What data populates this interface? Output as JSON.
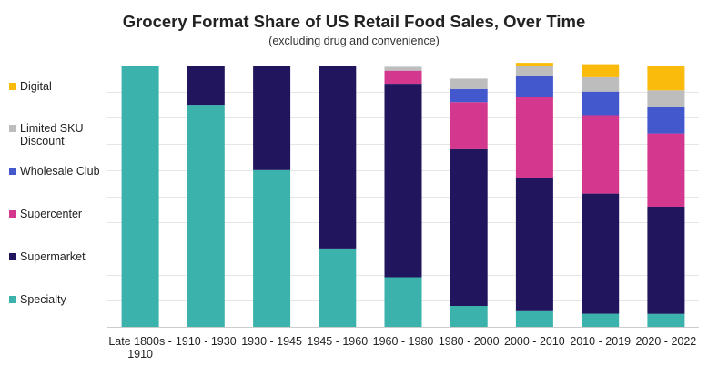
{
  "chart_data": {
    "type": "bar",
    "stacked": true,
    "title": "Grocery Format Share of US Retail Food Sales, Over Time",
    "subtitle": "(excluding drug and convenience)",
    "categories": [
      "Late 1800s - 1910",
      "1910 - 1930",
      "1930 - 1945",
      "1945 - 1960",
      "1960 - 1980",
      "1980 - 2000",
      "2000 - 2010",
      "2010 - 2019",
      "2020 - 2022"
    ],
    "category_label_lines": [
      [
        "Late 1800s -",
        "1910"
      ],
      [
        "1910 - 1930"
      ],
      [
        "1930 - 1945"
      ],
      [
        "1945 - 1960"
      ],
      [
        "1960 - 1980"
      ],
      [
        "1980 - 2000"
      ],
      [
        "2000 - 2010"
      ],
      [
        "2010 - 2019"
      ],
      [
        "2020 - 2022"
      ]
    ],
    "ylim": [
      0,
      100
    ],
    "grid": true,
    "legend_position": "left",
    "series": [
      {
        "name": "Specialty",
        "color": "#3bb3ac",
        "values": [
          100,
          85,
          60,
          30,
          19,
          8,
          6,
          5,
          5
        ]
      },
      {
        "name": "Supermarket",
        "color": "#21165e",
        "values": [
          0,
          15,
          40,
          70,
          74,
          60,
          51,
          46,
          41
        ]
      },
      {
        "name": "Supercenter",
        "color": "#d4388e",
        "values": [
          0,
          0,
          0,
          0,
          5,
          18,
          31,
          30,
          28
        ]
      },
      {
        "name": "Wholesale Club",
        "color": "#4358cc",
        "values": [
          0,
          0,
          0,
          0,
          0,
          5,
          8,
          9,
          10
        ]
      },
      {
        "name": "Limited SKU Discount",
        "color": "#bdbdbd",
        "values": [
          0,
          0,
          0,
          0,
          1.5,
          4,
          4,
          5.5,
          6.5
        ]
      },
      {
        "name": "Digital",
        "color": "#fbbb0d",
        "values": [
          0,
          0,
          0,
          0,
          0,
          0,
          1,
          5,
          9.5
        ]
      }
    ],
    "legend_order": [
      "Digital",
      "Limited SKU Discount",
      "Wholesale Club",
      "Supercenter",
      "Supermarket",
      "Specialty"
    ],
    "legend_label_lines": {
      "Digital": [
        "Digital"
      ],
      "Limited SKU Discount": [
        "Limited SKU",
        "Discount"
      ],
      "Wholesale Club": [
        "Wholesale Club"
      ],
      "Supercenter": [
        "Supercenter"
      ],
      "Supermarket": [
        "Supermarket"
      ],
      "Specialty": [
        "Specialty"
      ]
    }
  }
}
